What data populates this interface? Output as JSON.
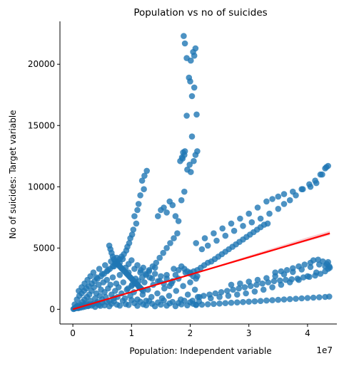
{
  "chart_data": {
    "type": "scatter",
    "title": "Population vs no of suicides",
    "xlabel": "Population:  Independent variable",
    "ylabel": "No of suicides: Target variable",
    "x_scale_label": "1e7",
    "x_scale_factor": 10000000,
    "xlim": [
      -2200000,
      45000000
    ],
    "ylim": [
      -1200,
      23500
    ],
    "x_ticks": [
      0,
      10000000,
      20000000,
      30000000,
      40000000
    ],
    "x_tick_labels": [
      "0",
      "1",
      "2",
      "3",
      "4"
    ],
    "y_ticks": [
      0,
      5000,
      10000,
      15000,
      20000
    ],
    "y_tick_labels": [
      "0",
      "5000",
      "10000",
      "15000",
      "20000"
    ],
    "grid": false,
    "legend": "none",
    "point_color": "#1f77b4",
    "regression_color": "#ff0000",
    "ci_color": "#f7b6bd",
    "regression_line": {
      "x": [
        0,
        43800000
      ],
      "y": [
        0,
        6200
      ]
    },
    "confidence_band": {
      "x": [
        0,
        5000000,
        10000000,
        15000000,
        20000000,
        25000000,
        30000000,
        35000000,
        40000000,
        43800000
      ],
      "lower": [
        -110,
        620,
        1360,
        2090,
        2800,
        3500,
        4200,
        4880,
        5560,
        6050
      ],
      "upper": [
        110,
        800,
        1470,
        2160,
        2880,
        3620,
        4380,
        5130,
        5880,
        6400
      ]
    },
    "series": [
      {
        "x": [
          18900000,
          19100000,
          19400000,
          20100000,
          20500000,
          20700000,
          20900000,
          19800000,
          20000000,
          20300000,
          20700000,
          21100000,
          21200000,
          20900000,
          20300000,
          20600000,
          20100000,
          19400000,
          19900000,
          19500000,
          19000000,
          18800000,
          18600000,
          18300000,
          18700000,
          19100000
        ],
        "y": [
          22300,
          21700,
          20500,
          20300,
          21000,
          20700,
          21300,
          18900,
          18600,
          17400,
          18100,
          15900,
          12900,
          12600,
          14100,
          12100,
          11200,
          15800,
          11800,
          11400,
          12600,
          12800,
          12400,
          12100,
          12300,
          12900
        ]
      },
      {
        "x": [
          12600000,
          12200000,
          11800000,
          12100000,
          11500000,
          11200000,
          11000000,
          10500000,
          10800000,
          10300000,
          10100000,
          9800000,
          9600000,
          9300000,
          9100000,
          8700000,
          8300000,
          8000000,
          7600000,
          7200000,
          6800000,
          6300000,
          5800000,
          5300000,
          4800000,
          4200000,
          3700000,
          3200000,
          2700000,
          2300000,
          1900000,
          1500000,
          1100000,
          700000,
          300000
        ],
        "y": [
          11300,
          10900,
          10500,
          9800,
          9300,
          8600,
          8100,
          7600,
          7000,
          6500,
          6100,
          5800,
          5400,
          5100,
          4800,
          4500,
          4300,
          4100,
          3900,
          3700,
          3500,
          3300,
          3100,
          2900,
          2700,
          2500,
          2300,
          2100,
          1900,
          1700,
          1500,
          1300,
          1100,
          800,
          400
        ]
      },
      {
        "x": [
          21000000,
          22500000,
          24000000,
          25500000,
          27000000,
          28500000,
          30000000,
          31500000,
          33000000,
          34000000,
          35000000,
          36000000,
          37500000,
          39000000,
          40500000,
          41500000,
          42500000,
          43200000,
          43500000,
          43000000,
          42200000,
          41300000,
          40300000,
          39200000,
          38000000,
          37000000,
          36000000,
          35000000,
          33500000,
          32000000,
          30500000,
          29000000,
          27500000,
          26000000,
          24500000,
          23000000,
          22000000
        ],
        "y": [
          5400,
          5800,
          6200,
          6600,
          7000,
          7400,
          7800,
          8300,
          8800,
          9000,
          9200,
          9400,
          9600,
          9800,
          10000,
          10300,
          11000,
          11600,
          11700,
          11500,
          11000,
          10500,
          10200,
          9800,
          9300,
          8900,
          8600,
          8200,
          7800,
          7400,
          7100,
          6800,
          6400,
          6000,
          5600,
          5200,
          4900
        ]
      },
      {
        "x": [
          34500000,
          35500000,
          36500000,
          37500000,
          38500000,
          39500000,
          40500000,
          41000000,
          41800000,
          42600000,
          43300000,
          43700000,
          43800000,
          43500000,
          43000000,
          42200000,
          41300000,
          40300000,
          39300000,
          38300000,
          37300000,
          36300000,
          35300000,
          34300000,
          33300000,
          32300000,
          31300000,
          30300000,
          29300000,
          28300000,
          27300000,
          26300000,
          25300000,
          24300000,
          23300000,
          22300000,
          21300000
        ],
        "y": [
          3000,
          3100,
          3200,
          3350,
          3500,
          3650,
          3800,
          4000,
          4050,
          3900,
          3700,
          3500,
          3400,
          3300,
          3100,
          2900,
          2750,
          2650,
          2600,
          2500,
          2450,
          2400,
          2350,
          2300,
          2200,
          2100,
          2000,
          1900,
          1800,
          1700,
          1600,
          1500,
          1400,
          1300,
          1200,
          1100,
          1000
        ]
      },
      {
        "x": [
          27000000,
          28500000,
          30000000,
          31500000,
          33000000,
          34500000,
          36000000,
          37500000,
          39000000,
          40500000,
          42000000,
          43500000,
          43000000,
          41500000,
          40000000,
          38500000,
          37000000,
          35500000,
          34000000,
          32500000,
          31000000,
          29500000,
          28000000,
          26500000,
          25000000,
          23500000
        ],
        "y": [
          2000,
          2100,
          2250,
          2400,
          2550,
          2700,
          2850,
          3050,
          3250,
          3450,
          3650,
          3850,
          3500,
          3000,
          2700,
          2400,
          2200,
          2000,
          1800,
          1600,
          1450,
          1300,
          1200,
          1100,
          1000,
          900
        ]
      },
      {
        "x": [
          21000000,
          22000000,
          23000000,
          24000000,
          25000000,
          26000000,
          27000000,
          28000000,
          29000000,
          30000000,
          31000000,
          32000000,
          33000000,
          34000000,
          35000000,
          36000000,
          37000000,
          38000000,
          39000000,
          40000000,
          41000000,
          42000000,
          43000000,
          43700000
        ],
        "y": [
          350,
          380,
          410,
          440,
          470,
          500,
          530,
          560,
          590,
          620,
          650,
          680,
          710,
          740,
          770,
          800,
          830,
          860,
          890,
          920,
          950,
          980,
          1010,
          1040
        ]
      },
      {
        "x": [
          14500000,
          15000000,
          15500000,
          16000000,
          16500000,
          17000000,
          17500000,
          18000000,
          18500000,
          19000000,
          17800000,
          17200000,
          16600000,
          16000000,
          15400000,
          14800000,
          14200000,
          13600000,
          13000000,
          12400000,
          11800000,
          11200000,
          10600000,
          10000000,
          9400000
        ],
        "y": [
          7600,
          8100,
          8300,
          7900,
          8800,
          8500,
          7600,
          7200,
          8900,
          9600,
          6200,
          5800,
          5400,
          5000,
          4600,
          4200,
          3800,
          3500,
          3200,
          2900,
          2600,
          2300,
          2100,
          1900,
          1700
        ]
      },
      {
        "x": [
          6200000,
          6400000,
          6600000,
          6800000,
          7000000,
          7200000,
          7400000,
          7600000,
          7800000,
          8000000,
          8200000,
          8400000,
          8600000,
          8800000,
          9000000,
          9200000,
          9400000,
          9600000,
          9800000,
          10000000,
          10200000,
          10400000,
          10600000,
          10800000,
          11000000,
          11200000,
          11400000,
          11600000,
          11800000,
          12000000
        ],
        "y": [
          5200,
          4900,
          4600,
          4300,
          4100,
          3900,
          3800,
          3700,
          3600,
          3500,
          3400,
          3300,
          3200,
          3100,
          3000,
          2900,
          2800,
          2700,
          2600,
          2500,
          2400,
          2300,
          2200,
          2100,
          2000,
          1900,
          1800,
          1700,
          1600,
          1500
        ]
      },
      {
        "x": [
          20000000,
          20600000,
          21200000,
          21800000,
          22400000,
          23000000,
          23600000,
          24200000,
          24800000,
          25400000,
          26000000,
          26600000,
          27200000,
          27800000,
          28400000,
          29000000,
          29600000,
          30200000,
          30800000,
          31400000,
          32000000,
          32600000,
          33200000
        ],
        "y": [
          3000,
          3100,
          3200,
          3400,
          3600,
          3800,
          3900,
          4100,
          4300,
          4500,
          4700,
          4900,
          5100,
          5300,
          5500,
          5700,
          5900,
          6100,
          6300,
          6500,
          6700,
          6900,
          7000
        ]
      },
      {
        "x": [
          200000,
          400000,
          600000,
          800000,
          1000000,
          1200000,
          1400000,
          1600000,
          1800000,
          2000000,
          2200000,
          2400000,
          2600000,
          2800000,
          3000000,
          3200000,
          3400000,
          3600000,
          3800000,
          4000000,
          4200000,
          4400000,
          4600000,
          4800000,
          5000000,
          5200000,
          5400000,
          5600000,
          5800000,
          6000000,
          6200000,
          6400000,
          6600000,
          6800000,
          7000000,
          7200000,
          7400000,
          7600000,
          7800000,
          8000000,
          8300000,
          8600000,
          8900000,
          9200000,
          9500000,
          9800000,
          10100000,
          10400000,
          10700000,
          11000000,
          11300000,
          11600000,
          11900000,
          12200000,
          12500000,
          12800000,
          13100000,
          13400000,
          13700000,
          14000000,
          14400000,
          14800000,
          15200000,
          15600000,
          16000000,
          16400000,
          16800000,
          17200000,
          17600000,
          18000000,
          18400000,
          18800000,
          19200000,
          19600000,
          20000000,
          20400000,
          20800000,
          21200000,
          21600000
        ],
        "y": [
          50,
          120,
          200,
          300,
          150,
          400,
          250,
          600,
          350,
          800,
          500,
          1000,
          300,
          1200,
          700,
          1500,
          400,
          1800,
          900,
          1300,
          600,
          2000,
          1100,
          1600,
          800,
          2200,
          1400,
          1000,
          2400,
          1700,
          700,
          2000,
          1200,
          2600,
          900,
          1500,
          2100,
          1000,
          1800,
          2800,
          1300,
          2200,
          900,
          1600,
          3000,
          1100,
          2000,
          1400,
          2500,
          800,
          1800,
          3200,
          1200,
          2200,
          700,
          1600,
          2600,
          1000,
          2000,
          3400,
          1300,
          2300,
          900,
          1700,
          2800,
          1100,
          2100,
          3300,
          1500,
          2500,
          800,
          1900,
          3000,
          1200,
          2200,
          700,
          1600,
          2700,
          1000
        ]
      },
      {
        "x": [
          100000,
          300000,
          500000,
          700000,
          900000,
          1100000,
          1300000,
          1500000,
          1700000,
          1900000,
          2100000,
          2300000,
          2600000,
          2900000,
          3200000,
          3500000,
          3800000,
          4100000,
          4400000,
          4700000,
          5000000,
          5400000,
          5800000,
          6200000,
          6600000,
          7000000,
          7500000,
          8000000,
          8500000,
          9000000,
          9500000,
          10000000,
          10500000,
          11000000,
          11500000,
          12000000,
          12500000,
          13000000,
          13500000,
          14000000,
          14500000,
          15000000,
          15500000,
          16000000,
          16500000,
          17000000,
          17500000,
          18000000,
          18500000,
          19000000,
          19500000,
          20000000,
          20500000,
          21000000,
          21500000
        ],
        "y": [
          20,
          60,
          100,
          150,
          90,
          200,
          130,
          250,
          180,
          300,
          220,
          350,
          260,
          400,
          300,
          450,
          200,
          500,
          350,
          280,
          550,
          320,
          600,
          250,
          450,
          650,
          380,
          300,
          700,
          420,
          350,
          750,
          500,
          280,
          620,
          400,
          330,
          680,
          450,
          250,
          560,
          380,
          720,
          300,
          480,
          600,
          260,
          520,
          400,
          700,
          320,
          580,
          450,
          360,
          640
        ]
      },
      {
        "x": [
          1000000,
          1500000,
          2000000,
          2500000,
          3000000,
          3500000,
          4000000,
          4500000,
          5000000,
          5500000,
          6000000,
          6500000,
          7000000,
          7500000,
          8000000,
          8500000,
          9000000,
          9500000,
          10000000,
          10500000,
          11000000,
          11500000,
          12000000,
          12500000,
          13000000,
          13500000,
          14000000,
          14500000,
          15000000,
          15500000,
          16000000,
          16500000,
          17000000,
          17500000,
          18000000,
          18500000,
          19000000,
          19500000,
          20000000,
          20500000,
          21000000
        ],
        "y": [
          1500,
          1800,
          2100,
          2400,
          2700,
          3000,
          2600,
          3300,
          2900,
          3600,
          3200,
          3900,
          3500,
          4200,
          3800,
          4100,
          3400,
          3700,
          4000,
          3300,
          3600,
          3000,
          3400,
          2800,
          3100,
          2500,
          2900,
          2300,
          2700,
          2100,
          2500,
          1900,
          2300,
          2800,
          3200,
          3500,
          3300,
          3100,
          2900,
          2700,
          2500
        ]
      }
    ]
  }
}
